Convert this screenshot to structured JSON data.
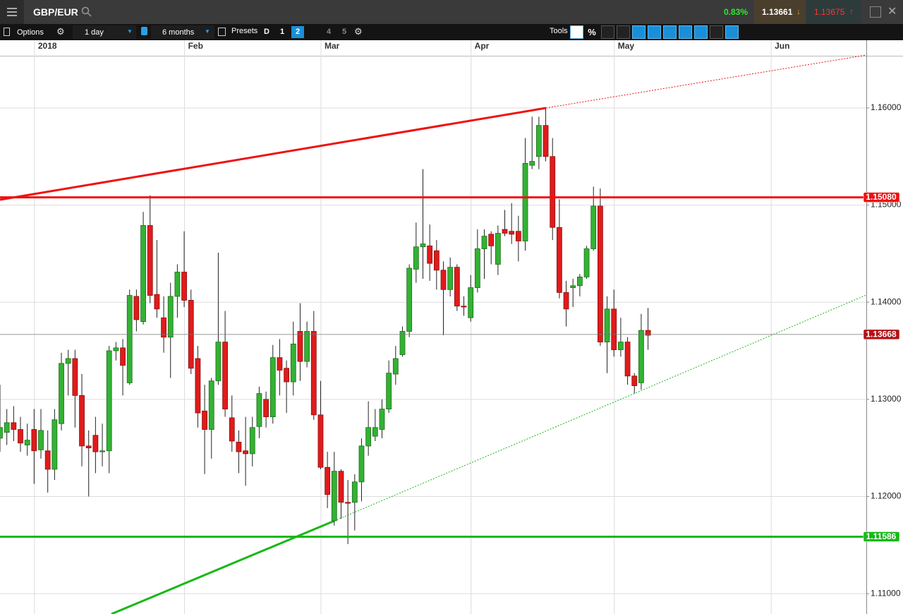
{
  "header": {
    "symbol": "GBP/EUR",
    "change": "0.83%",
    "bid": "1.13661",
    "ask": "1.13675"
  },
  "toolbar": {
    "options": "Options",
    "interval": "1 day",
    "range": "6 months",
    "presets": "Presets",
    "preset_buttons": [
      "D",
      "1",
      "2",
      "4",
      "5"
    ],
    "tools": "Tools",
    "tool_percent": "%"
  },
  "chart_data": {
    "type": "candlestick",
    "categories": [
      null,
      null,
      null,
      null,
      null,
      "2018",
      null,
      null,
      null,
      null,
      null,
      null,
      null,
      null,
      null,
      null,
      null,
      null,
      null,
      null,
      null,
      null,
      null,
      null,
      null,
      null,
      null,
      "Feb",
      null,
      null,
      null,
      null,
      null,
      null,
      null,
      null,
      null,
      null,
      null,
      null,
      null,
      null,
      null,
      null,
      null,
      null,
      null,
      "Mar",
      null,
      null,
      null,
      null,
      null,
      null,
      null,
      null,
      null,
      null,
      null,
      null,
      null,
      null,
      null,
      null,
      null,
      null,
      null,
      null,
      null,
      "Apr",
      null,
      null,
      null,
      null,
      null,
      null,
      null,
      null,
      null,
      null,
      null,
      null,
      null,
      null,
      null,
      null,
      null,
      null,
      null,
      null,
      "May",
      null,
      null,
      null,
      null,
      null,
      null,
      null,
      null,
      null,
      null,
      null,
      null,
      null,
      null,
      null,
      null,
      null,
      null,
      null,
      null,
      null,
      null,
      "Jun",
      null,
      null,
      null,
      null,
      null,
      null,
      null,
      null,
      null,
      null,
      null,
      null,
      null
    ],
    "open": [
      1.126,
      1.1266,
      1.1276,
      1.1269,
      1.1253,
      1.1269,
      1.1248,
      1.1247,
      1.1228,
      1.1275,
      1.1337,
      1.1342,
      1.1304,
      1.1252,
      1.1263,
      1.1246,
      1.1247,
      1.135,
      1.1353,
      1.1317,
      1.1406,
      1.138,
      1.1479,
      1.1408,
      1.1384,
      1.1364,
      1.1406,
      1.1431,
      1.1402,
      1.1342,
      1.1288,
      1.1269,
      1.1319,
      1.1359,
      1.1281,
      1.1256,
      1.1247,
      1.1244,
      1.1272,
      1.13,
      1.1282,
      1.1343,
      1.1332,
      1.1318,
      1.137,
      1.1339,
      1.137,
      1.1284,
      1.123,
      1.1175,
      1.1226,
      1.1194,
      1.1194,
      1.1215,
      1.1252,
      1.1262,
      1.1269,
      1.129,
      1.1326,
      1.1346,
      1.137,
      1.1434,
      1.1457,
      1.1458,
      1.1453,
      1.1433,
      1.1413,
      1.1436,
      1.1396,
      1.1384,
      1.1415,
      1.1455,
      1.147,
      1.1439,
      1.1475,
      1.1473,
      1.1473,
      1.1463,
      1.1541,
      1.155,
      1.1582,
      1.155,
      1.1477,
      1.141,
      1.1415,
      1.1417,
      1.1426,
      1.1455,
      1.1499,
      1.1359,
      1.1393,
      1.1351,
      1.1359,
      1.1324,
      1.1317,
      1.1371,
      null,
      null,
      null,
      null,
      null,
      null,
      null,
      null,
      null,
      null,
      null,
      null,
      null,
      null,
      null,
      null,
      null,
      null,
      null,
      null,
      null,
      null,
      null,
      null,
      null,
      null,
      null,
      null,
      null,
      null,
      null
    ],
    "high": [
      1.1315,
      1.129,
      1.1293,
      1.1282,
      1.1275,
      1.129,
      1.129,
      1.1268,
      1.129,
      1.1348,
      1.1351,
      1.1351,
      1.1326,
      1.1268,
      1.1282,
      1.1275,
      1.1355,
      1.1359,
      1.1362,
      1.1413,
      1.1413,
      1.1493,
      1.151,
      1.1464,
      1.1406,
      1.142,
      1.1439,
      1.1473,
      1.1413,
      1.1355,
      1.1315,
      1.1322,
      1.1451,
      1.1391,
      1.1304,
      1.1268,
      1.1282,
      1.1282,
      1.1313,
      1.1308,
      1.1356,
      1.1362,
      1.134,
      1.138,
      1.1399,
      1.138,
      1.1391,
      1.1319,
      1.1246,
      1.1246,
      1.1228,
      1.1217,
      1.1223,
      1.126,
      1.1298,
      1.129,
      1.13,
      1.134,
      1.1355,
      1.1375,
      1.1439,
      1.1482,
      1.1537,
      1.148,
      1.1464,
      1.1442,
      1.1446,
      1.1439,
      1.1406,
      1.1428,
      1.1475,
      1.1475,
      1.1473,
      1.1479,
      1.1495,
      1.1502,
      1.1489,
      1.1569,
      1.1591,
      1.1591,
      1.1599,
      1.1569,
      1.1506,
      1.1422,
      1.1424,
      1.1429,
      1.1458,
      1.1519,
      1.1517,
      1.1406,
      1.1413,
      1.1384,
      1.1364,
      1.1327,
      1.1388,
      1.1394,
      null,
      null,
      null,
      null,
      null,
      null,
      null,
      null,
      null,
      null,
      null,
      null,
      null,
      null,
      null,
      null,
      null,
      null,
      null,
      null,
      null,
      null,
      null,
      null,
      null,
      null,
      null,
      null,
      null,
      null,
      null
    ],
    "low": [
      1.1246,
      1.1253,
      1.1257,
      1.1246,
      1.1242,
      1.1213,
      1.1239,
      1.1204,
      1.1217,
      1.1268,
      1.1304,
      1.1271,
      1.1231,
      1.12,
      1.1224,
      1.1231,
      1.1224,
      1.134,
      1.1304,
      1.1315,
      1.137,
      1.1377,
      1.1399,
      1.1384,
      1.1348,
      1.1322,
      1.1384,
      1.1395,
      1.1326,
      1.1271,
      1.1223,
      1.1239,
      1.1315,
      1.1282,
      1.1246,
      1.1224,
      1.1211,
      1.1231,
      1.126,
      1.1271,
      1.1275,
      1.1304,
      1.1286,
      1.1304,
      1.1319,
      1.1333,
      1.1279,
      1.1228,
      1.1188,
      1.117,
      1.1177,
      1.1151,
      1.1165,
      1.1195,
      1.1242,
      1.1257,
      1.126,
      1.1286,
      1.1315,
      1.1344,
      1.1364,
      1.142,
      1.1424,
      1.1422,
      1.1413,
      1.1366,
      1.1406,
      1.1391,
      1.1386,
      1.138,
      1.141,
      1.1424,
      1.1439,
      1.1428,
      1.1468,
      1.146,
      1.1442,
      1.1453,
      1.1537,
      1.1537,
      1.1545,
      1.1464,
      1.1404,
      1.1375,
      1.1395,
      1.1406,
      1.1424,
      1.1453,
      1.1355,
      1.1327,
      1.1344,
      1.1344,
      1.1315,
      1.1306,
      1.131,
      1.1351,
      null,
      null,
      null,
      null,
      null,
      null,
      null,
      null,
      null,
      null,
      null,
      null,
      null,
      null,
      null,
      null,
      null,
      null,
      null,
      null,
      null,
      null,
      null,
      null,
      null,
      null,
      null,
      null,
      null,
      null,
      null
    ],
    "close": [
      1.1271,
      1.1276,
      1.1269,
      1.1255,
      1.1258,
      1.1247,
      1.1268,
      1.1228,
      1.1279,
      1.1337,
      1.1342,
      1.1304,
      1.1252,
      1.125,
      1.1246,
      1.1247,
      1.135,
      1.1353,
      1.1335,
      1.1407,
      1.1382,
      1.1479,
      1.1407,
      1.1393,
      1.1364,
      1.1406,
      1.1431,
      1.1402,
      1.1332,
      1.1286,
      1.1269,
      1.1319,
      1.1359,
      1.129,
      1.1257,
      1.1246,
      1.1244,
      1.1271,
      1.1306,
      1.1282,
      1.1343,
      1.133,
      1.1318,
      1.1357,
      1.1339,
      1.137,
      1.1284,
      1.123,
      1.1202,
      1.1226,
      1.1194,
      1.1193,
      1.1215,
      1.1252,
      1.1271,
      1.1271,
      1.129,
      1.1327,
      1.1342,
      1.137,
      1.1435,
      1.1457,
      1.146,
      1.144,
      1.1433,
      1.1413,
      1.1436,
      1.1396,
      1.1395,
      1.1415,
      1.1455,
      1.1468,
      1.1458,
      1.1471,
      1.1471,
      1.147,
      1.1463,
      1.1543,
      1.1545,
      1.1582,
      1.155,
      1.1477,
      1.141,
      1.1393,
      1.1417,
      1.1426,
      1.1455,
      1.1499,
      1.1359,
      1.1393,
      1.1351,
      1.1359,
      1.1324,
      1.1314,
      1.1371,
      1.1366,
      null,
      null,
      null,
      null,
      null,
      null,
      null,
      null,
      null,
      null,
      null,
      null,
      null,
      null,
      null,
      null,
      null,
      null,
      null,
      null,
      null,
      null,
      null,
      null,
      null,
      null,
      null,
      null,
      null,
      null,
      null
    ],
    "up_color": "#33b233",
    "down_color": "#e01b1b",
    "ylim": [
      1.1079,
      1.1653
    ],
    "yticks": [
      {
        "value": 1.11,
        "label": "1.11000"
      },
      {
        "value": 1.12,
        "label": "1.12000"
      },
      {
        "value": 1.13,
        "label": "1.13000"
      },
      {
        "value": 1.14,
        "label": "1.14000"
      },
      {
        "value": 1.15,
        "label": "1.15000"
      },
      {
        "value": 1.16,
        "label": "1.16000"
      }
    ],
    "grid": true,
    "levels": [
      {
        "value": 1.1508,
        "label": "1.15080",
        "color": "#ee1111"
      },
      {
        "value": 1.11586,
        "label": "1.11586",
        "color": "#17b817"
      }
    ],
    "last_price": {
      "value": 1.13668,
      "label": "1.13668",
      "color": "#b31217"
    }
  }
}
